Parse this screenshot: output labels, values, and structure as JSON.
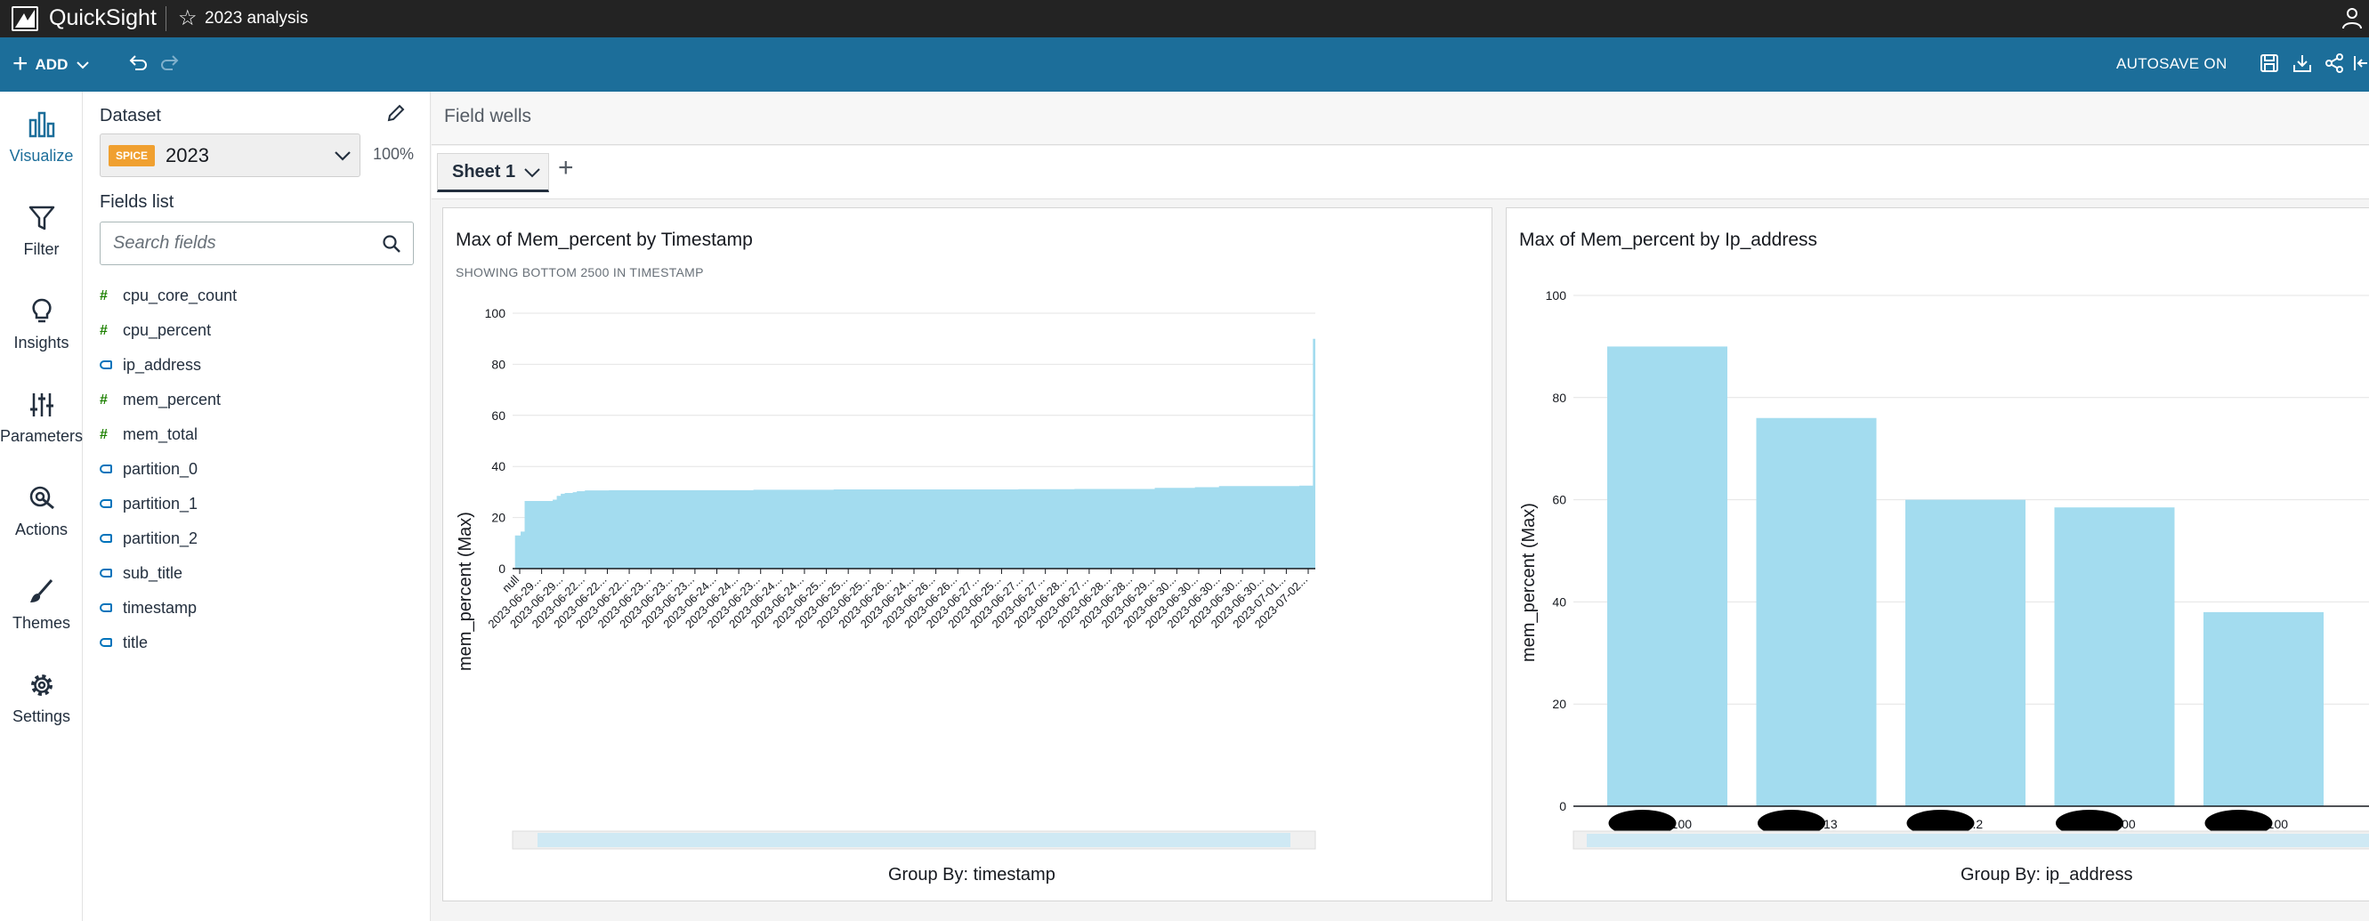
{
  "app": {
    "name": "QuickSight",
    "analysis_name": "2023 analysis"
  },
  "toolbar": {
    "add_label": "ADD",
    "autosave_label": "AUTOSAVE ON"
  },
  "rail": [
    {
      "label": "Visualize",
      "icon": "bar-chart-icon"
    },
    {
      "label": "Filter",
      "icon": "filter-icon"
    },
    {
      "label": "Insights",
      "icon": "lightbulb-icon"
    },
    {
      "label": "Parameters",
      "icon": "sliders-icon"
    },
    {
      "label": "Actions",
      "icon": "pointer-icon"
    },
    {
      "label": "Themes",
      "icon": "brush-icon"
    },
    {
      "label": "Settings",
      "icon": "gear-icon"
    }
  ],
  "panel": {
    "dataset_title": "Dataset",
    "spice_badge": "SPICE",
    "dataset_name": "2023",
    "dataset_percent": "100%",
    "fields_title": "Fields list",
    "search_placeholder": "Search fields",
    "fields": [
      {
        "name": "cpu_core_count",
        "type": "measure"
      },
      {
        "name": "cpu_percent",
        "type": "measure"
      },
      {
        "name": "ip_address",
        "type": "dimension"
      },
      {
        "name": "mem_percent",
        "type": "measure"
      },
      {
        "name": "mem_total",
        "type": "measure"
      },
      {
        "name": "partition_0",
        "type": "dimension"
      },
      {
        "name": "partition_1",
        "type": "dimension"
      },
      {
        "name": "partition_2",
        "type": "dimension"
      },
      {
        "name": "sub_title",
        "type": "dimension"
      },
      {
        "name": "timestamp",
        "type": "dimension"
      },
      {
        "name": "title",
        "type": "dimension"
      }
    ]
  },
  "main": {
    "field_wells_label": "Field wells",
    "sheet_name": "Sheet 1"
  },
  "colors": {
    "bar": "#a3dcef",
    "topbar": "#232323",
    "toolbar": "#1c6e9a",
    "spice": "#f0a030"
  },
  "chart_data": [
    {
      "type": "area",
      "title": "Max of Mem_percent by Timestamp",
      "subtitle": "SHOWING BOTTOM 2500 IN TIMESTAMP",
      "xlabel": "Group By: timestamp",
      "ylabel": "mem_percent (Max)",
      "ylim": [
        0,
        100
      ],
      "yticks": [
        0,
        20,
        40,
        60,
        80,
        100
      ],
      "x_tick_labels": [
        "null",
        "2023-06-29...",
        "2023-06-29...",
        "2023-06-22...",
        "2023-06-22...",
        "2023-06-22...",
        "2023-06-23...",
        "2023-06-23...",
        "2023-06-23...",
        "2023-06-24...",
        "2023-06-24...",
        "2023-06-23...",
        "2023-06-24...",
        "2023-06-24...",
        "2023-06-25...",
        "2023-06-25...",
        "2023-06-25...",
        "2023-06-26...",
        "2023-06-24...",
        "2023-06-26...",
        "2023-06-26...",
        "2023-06-27...",
        "2023-06-25...",
        "2023-06-27...",
        "2023-06-27...",
        "2023-06-28...",
        "2023-06-27...",
        "2023-06-28...",
        "2023-06-28...",
        "2023-06-29...",
        "2023-06-30...",
        "2023-06-30...",
        "2023-06-30...",
        "2023-06-30...",
        "2023-06-30...",
        "2023-07-01...",
        "2023-07-02..."
      ],
      "x": [
        0,
        0.3,
        1,
        1.5,
        5,
        5.5,
        6,
        6.5,
        7.5,
        8,
        9,
        12,
        20,
        30,
        40,
        50,
        63,
        70,
        80,
        85,
        88,
        98,
        99.7,
        100
      ],
      "values": [
        0,
        13,
        14.5,
        26.5,
        27,
        28.5,
        29.3,
        29.6,
        29.9,
        30.3,
        30.6,
        30.7,
        30.7,
        30.9,
        31.0,
        31.0,
        31.1,
        31.2,
        31.6,
        31.9,
        32.3,
        32.5,
        90,
        90
      ]
    },
    {
      "type": "bar",
      "title": "Max of Mem_percent by Ip_address",
      "xlabel": "Group By: ip_address",
      "ylabel": "mem_percent (Max)",
      "ylim": [
        0,
        100
      ],
      "yticks": [
        0,
        20,
        40,
        60,
        80,
        100
      ],
      "categories": [
        "...100",
        "...13",
        "...2",
        "...00",
        "...100"
      ],
      "values": [
        90,
        76,
        60,
        58.5,
        38
      ]
    }
  ]
}
